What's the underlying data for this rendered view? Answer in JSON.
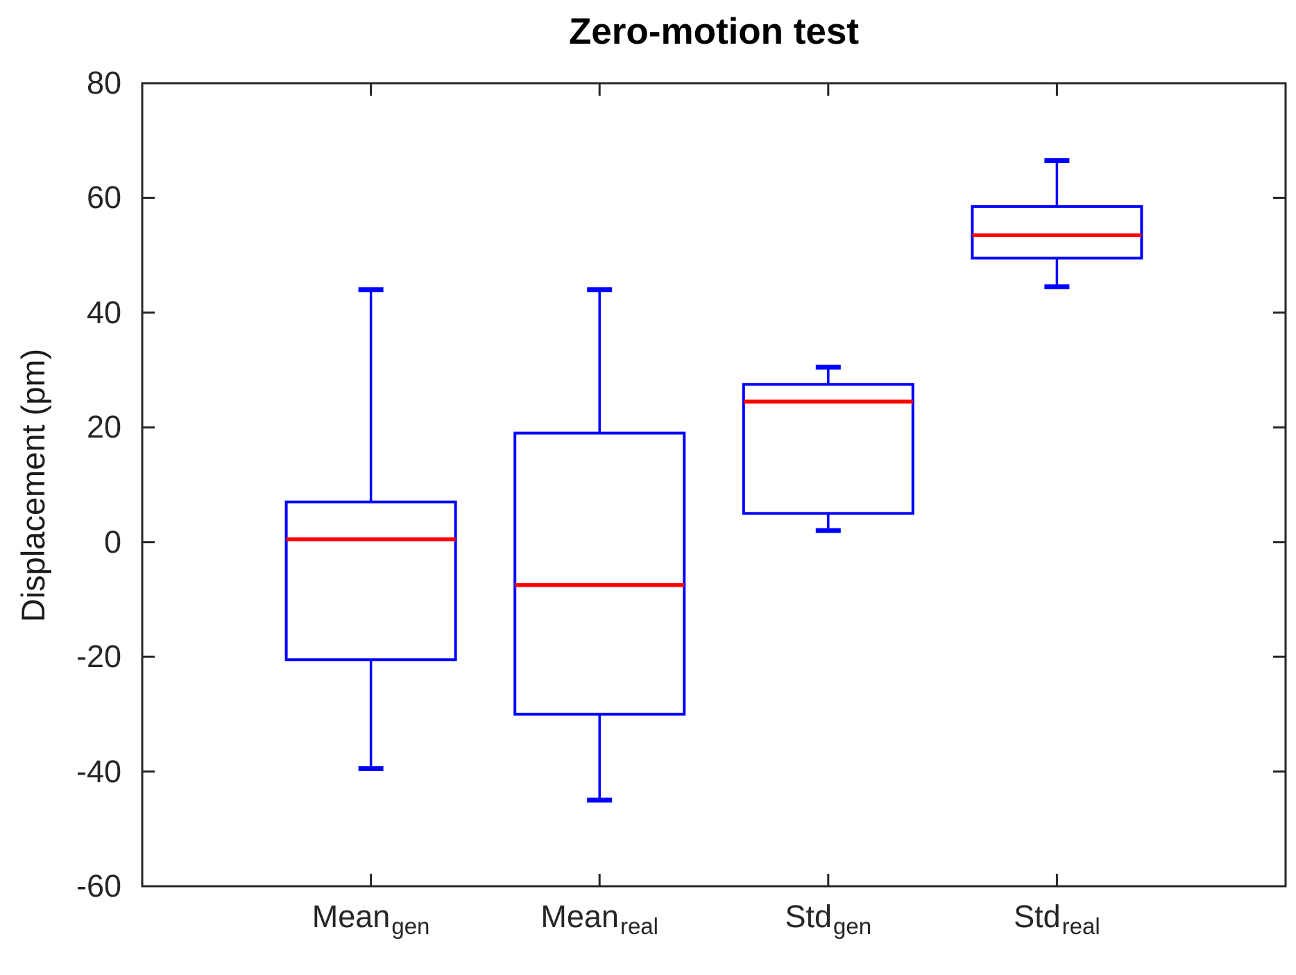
{
  "figure": {
    "background": "#ffffff"
  },
  "axes": {
    "color": "#262626",
    "ytick_labels": [
      "80",
      "60",
      "40",
      "20",
      "0",
      "-20",
      "-40",
      "-60"
    ]
  },
  "chart_data": {
    "type": "boxplot",
    "title": "Zero-motion test",
    "xlabel": "",
    "ylabel": "Displacement (pm)",
    "ylim": [
      -60,
      80
    ],
    "yticks": [
      80,
      60,
      40,
      20,
      0,
      -20,
      -40,
      -60
    ],
    "xlim": [
      0,
      5
    ],
    "grid": false,
    "legend": "none",
    "box_color": "#0000ff",
    "median_color": "#ff0000",
    "categories": [
      {
        "label": "Mean",
        "subscript": "gen",
        "position": 1
      },
      {
        "label": "Mean",
        "subscript": "real",
        "position": 2
      },
      {
        "label": "Std",
        "subscript": "gen",
        "position": 3
      },
      {
        "label": "Std",
        "subscript": "real",
        "position": 4
      }
    ],
    "series": [
      {
        "name": "Mean_gen",
        "whisker_low": -39.5,
        "q1": -20.5,
        "median": 0.5,
        "q3": 7,
        "whisker_high": 44
      },
      {
        "name": "Mean_real",
        "whisker_low": -45,
        "q1": -30,
        "median": -7.5,
        "q3": 19,
        "whisker_high": 44
      },
      {
        "name": "Std_gen",
        "whisker_low": 2,
        "q1": 5,
        "median": 24.5,
        "q3": 27.5,
        "whisker_high": 30.5
      },
      {
        "name": "Std_real",
        "whisker_low": 44.5,
        "q1": 49.5,
        "median": 53.5,
        "q3": 58.5,
        "whisker_high": 66.5
      }
    ]
  }
}
